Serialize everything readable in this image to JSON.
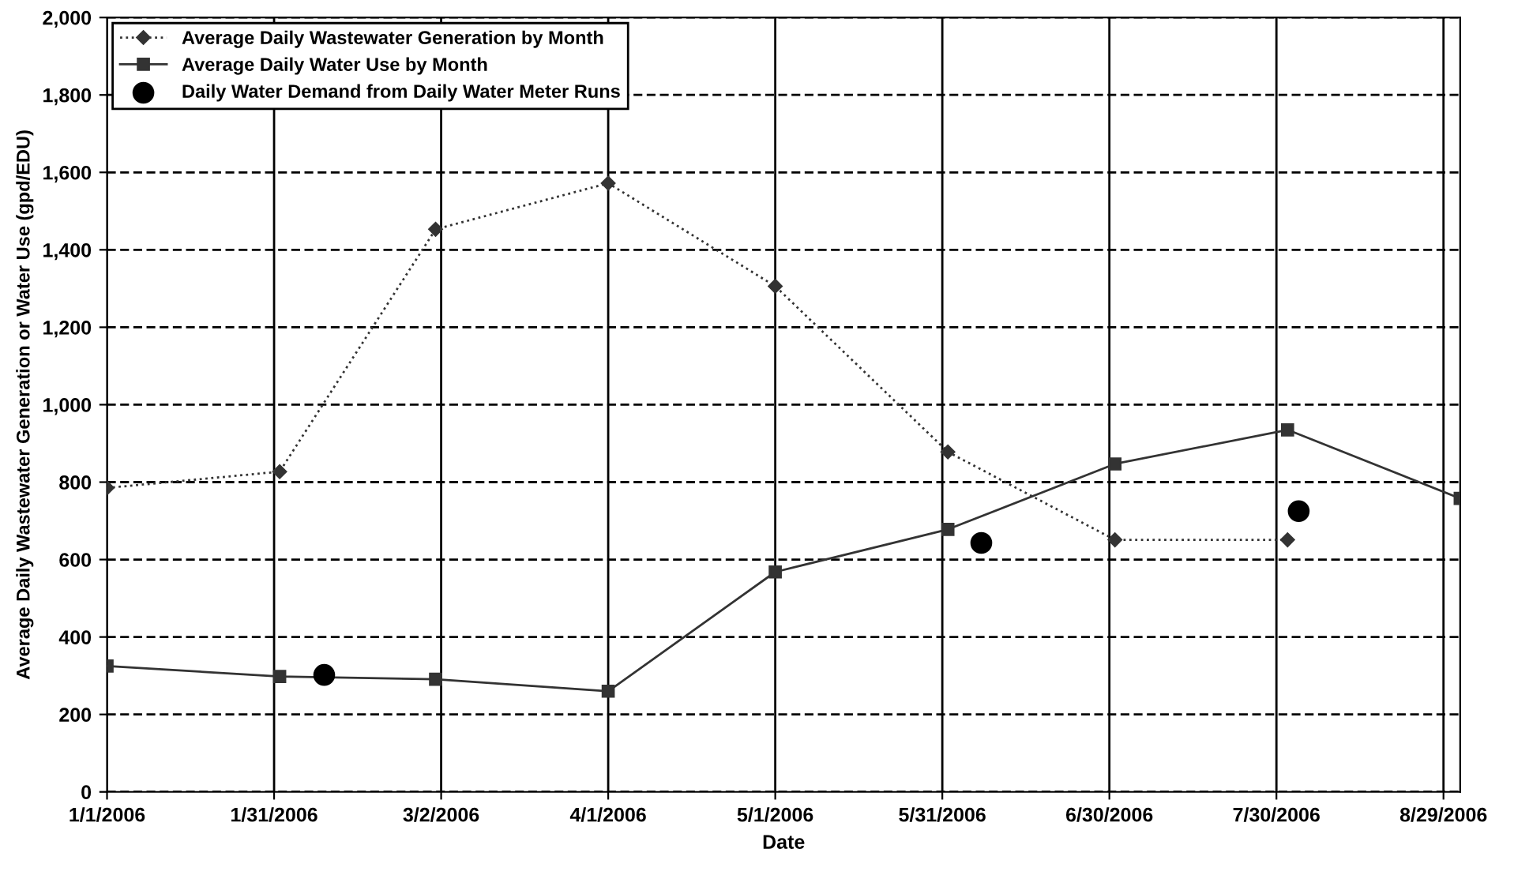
{
  "chart_data": {
    "type": "line",
    "xlabel": "Date",
    "ylabel": "Average Daily Wastewater Generation or Water Use (gpd/EDU)",
    "series": [
      {
        "name": "Average Daily Wastewater Generation by Month",
        "color": "#333333",
        "marker": "diamond",
        "line_style": "dotted",
        "x": [
          "2006-01-01",
          "2006-02-01",
          "2006-03-01",
          "2006-04-01",
          "2006-05-01",
          "2006-06-01",
          "2006-07-01",
          "2006-08-01"
        ],
        "values": [
          785,
          827,
          1453,
          1572,
          1306,
          878,
          651,
          651
        ]
      },
      {
        "name": "Average Daily Water Use by Month",
        "color": "#333333",
        "marker": "square",
        "line_style": "solid",
        "x": [
          "2006-01-01",
          "2006-02-01",
          "2006-03-01",
          "2006-04-01",
          "2006-05-01",
          "2006-06-01",
          "2006-07-01",
          "2006-08-01",
          "2006-09-01"
        ],
        "values": [
          325,
          298,
          291,
          260,
          568,
          678,
          847,
          935,
          758
        ]
      },
      {
        "name": "Daily Water Demand from Daily Water Meter Runs",
        "type": "scatter",
        "color": "#000000",
        "marker": "circle",
        "x": [
          "2006-02-09",
          "2006-06-07",
          "2006-08-03"
        ],
        "values": [
          302,
          643,
          725
        ]
      }
    ],
    "xlim": [
      "2006-01-01",
      "2006-09-01"
    ],
    "xticks": [
      {
        "value": "2006-01-01",
        "label": "1/1/2006"
      },
      {
        "value": "2006-01-31",
        "label": "1/31/2006"
      },
      {
        "value": "2006-03-02",
        "label": "3/2/2006"
      },
      {
        "value": "2006-04-01",
        "label": "4/1/2006"
      },
      {
        "value": "2006-05-01",
        "label": "5/1/2006"
      },
      {
        "value": "2006-05-31",
        "label": "5/31/2006"
      },
      {
        "value": "2006-06-30",
        "label": "6/30/2006"
      },
      {
        "value": "2006-07-30",
        "label": "7/30/2006"
      },
      {
        "value": "2006-08-29",
        "label": "8/29/2006"
      }
    ],
    "ylim": [
      0,
      2000
    ],
    "yticks": [
      0,
      200,
      400,
      600,
      800,
      {
        "value": 1000,
        "label": "1,000"
      },
      {
        "value": 1200,
        "label": "1,200"
      },
      {
        "value": 1400,
        "label": "1,400"
      },
      {
        "value": 1600,
        "label": "1,600"
      },
      {
        "value": 1800,
        "label": "1,800"
      },
      {
        "value": 2000,
        "label": "2,000"
      }
    ],
    "grid": true,
    "legend": "top left"
  }
}
